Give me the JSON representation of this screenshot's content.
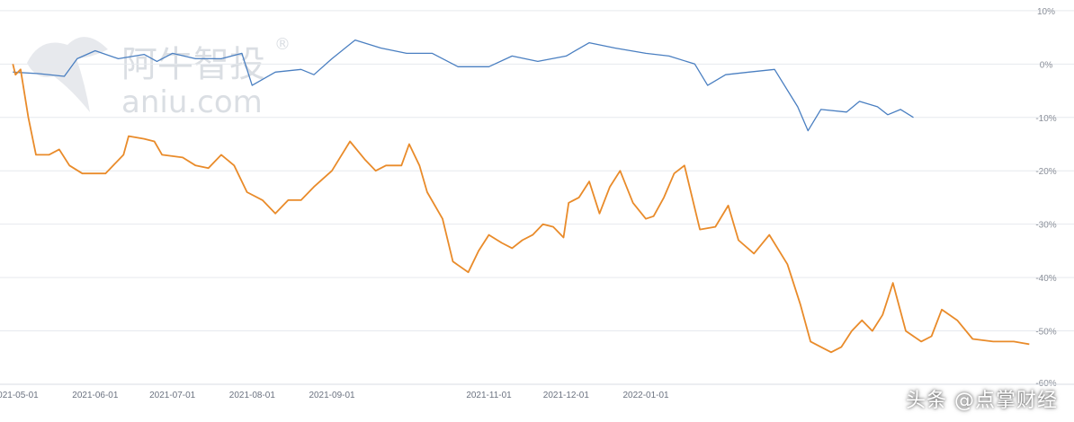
{
  "chart_data": {
    "type": "line",
    "title": "",
    "xlabel": "",
    "ylabel": "",
    "ylim": [
      -60,
      12
    ],
    "y_ticks": [
      10,
      0,
      -10,
      -20,
      -30,
      -40,
      -50,
      -60
    ],
    "y_tick_labels": [
      "10%",
      "0%",
      "-10%",
      "-20%",
      "-30%",
      "-40%",
      "-50%",
      "-60%"
    ],
    "x_ticks": [
      "2021-05-01",
      "2021-06-01",
      "2021-07-01",
      "2021-08-01",
      "2021-09-01",
      "2021-11-01",
      "2021-12-01",
      "2022-01-01"
    ],
    "grid": true,
    "series": [
      {
        "color": "#4a7fc1",
        "points": [
          [
            "2021-04-30",
            -1.5
          ],
          [
            "2021-05-10",
            -1.8
          ],
          [
            "2021-05-20",
            -2.3
          ],
          [
            "2021-05-25",
            1.0
          ],
          [
            "2021-06-01",
            2.5
          ],
          [
            "2021-06-10",
            1.0
          ],
          [
            "2021-06-20",
            1.8
          ],
          [
            "2021-06-25",
            0.5
          ],
          [
            "2021-07-01",
            2.0
          ],
          [
            "2021-07-10",
            1.0
          ],
          [
            "2021-07-20",
            1.0
          ],
          [
            "2021-07-28",
            2.0
          ],
          [
            "2021-08-01",
            -4.0
          ],
          [
            "2021-08-10",
            -1.5
          ],
          [
            "2021-08-20",
            -1.0
          ],
          [
            "2021-08-25",
            -2.0
          ],
          [
            "2021-09-01",
            1.0
          ],
          [
            "2021-09-10",
            4.5
          ],
          [
            "2021-09-20",
            3.0
          ],
          [
            "2021-09-30",
            2.0
          ],
          [
            "2021-10-10",
            2.0
          ],
          [
            "2021-10-20",
            -0.5
          ],
          [
            "2021-11-01",
            -0.5
          ],
          [
            "2021-11-10",
            1.5
          ],
          [
            "2021-11-20",
            0.5
          ],
          [
            "2021-12-01",
            1.5
          ],
          [
            "2021-12-10",
            4.0
          ],
          [
            "2021-12-20",
            3.0
          ],
          [
            "2022-01-01",
            2.0
          ],
          [
            "2022-01-10",
            1.5
          ],
          [
            "2022-01-20",
            0.0
          ],
          [
            "2022-01-25",
            -4.0
          ],
          [
            "2022-02-01",
            -2.0
          ],
          [
            "2022-02-10",
            -1.5
          ],
          [
            "2022-02-20",
            -1.0
          ],
          [
            "2022-03-01",
            -8.0
          ],
          [
            "2022-03-05",
            -12.5
          ],
          [
            "2022-03-10",
            -8.5
          ],
          [
            "2022-03-20",
            -9.0
          ],
          [
            "2022-03-25",
            -7.0
          ],
          [
            "2022-04-01",
            -8.0
          ],
          [
            "2022-04-05",
            -9.5
          ],
          [
            "2022-04-10",
            -8.5
          ],
          [
            "2022-04-15",
            -10.0
          ]
        ]
      },
      {
        "color": "#e98b2a",
        "points": [
          [
            "2021-04-30",
            0.0
          ],
          [
            "2021-05-01",
            -2.0
          ],
          [
            "2021-05-03",
            -1.0
          ],
          [
            "2021-05-06",
            -10.0
          ],
          [
            "2021-05-09",
            -17.0
          ],
          [
            "2021-05-14",
            -17.0
          ],
          [
            "2021-05-18",
            -16.0
          ],
          [
            "2021-05-22",
            -19.0
          ],
          [
            "2021-05-27",
            -20.5
          ],
          [
            "2021-06-05",
            -20.5
          ],
          [
            "2021-06-12",
            -17.0
          ],
          [
            "2021-06-14",
            -13.5
          ],
          [
            "2021-06-20",
            -14.0
          ],
          [
            "2021-06-24",
            -14.5
          ],
          [
            "2021-06-27",
            -17.0
          ],
          [
            "2021-07-05",
            -17.5
          ],
          [
            "2021-07-10",
            -19.0
          ],
          [
            "2021-07-15",
            -19.5
          ],
          [
            "2021-07-20",
            -17.0
          ],
          [
            "2021-07-25",
            -19.0
          ],
          [
            "2021-07-30",
            -24.0
          ],
          [
            "2021-08-05",
            -25.5
          ],
          [
            "2021-08-10",
            -28.0
          ],
          [
            "2021-08-15",
            -25.5
          ],
          [
            "2021-08-20",
            -25.5
          ],
          [
            "2021-08-25",
            -23.0
          ],
          [
            "2021-09-01",
            -20.0
          ],
          [
            "2021-09-08",
            -14.5
          ],
          [
            "2021-09-14",
            -18.0
          ],
          [
            "2021-09-18",
            -20.0
          ],
          [
            "2021-09-22",
            -19.0
          ],
          [
            "2021-09-28",
            -19.0
          ],
          [
            "2021-10-01",
            -15.0
          ],
          [
            "2021-10-05",
            -19.0
          ],
          [
            "2021-10-08",
            -24.0
          ],
          [
            "2021-10-14",
            -29.0
          ],
          [
            "2021-10-18",
            -37.0
          ],
          [
            "2021-10-24",
            -39.0
          ],
          [
            "2021-10-28",
            -35.0
          ],
          [
            "2021-11-01",
            -32.0
          ],
          [
            "2021-11-06",
            -33.5
          ],
          [
            "2021-11-10",
            -34.5
          ],
          [
            "2021-11-14",
            -33.0
          ],
          [
            "2021-11-18",
            -32.0
          ],
          [
            "2021-11-22",
            -30.0
          ],
          [
            "2021-11-26",
            -30.5
          ],
          [
            "2021-11-30",
            -32.5
          ],
          [
            "2021-12-02",
            -26.0
          ],
          [
            "2021-12-06",
            -25.0
          ],
          [
            "2021-12-10",
            -22.0
          ],
          [
            "2021-12-14",
            -28.0
          ],
          [
            "2021-12-18",
            -23.0
          ],
          [
            "2021-12-22",
            -20.0
          ],
          [
            "2021-12-27",
            -26.0
          ],
          [
            "2022-01-01",
            -29.0
          ],
          [
            "2022-01-04",
            -28.5
          ],
          [
            "2022-01-08",
            -25.0
          ],
          [
            "2022-01-12",
            -20.5
          ],
          [
            "2022-01-16",
            -19.0
          ],
          [
            "2022-01-22",
            -31.0
          ],
          [
            "2022-01-28",
            -30.5
          ],
          [
            "2022-02-02",
            -26.5
          ],
          [
            "2022-02-06",
            -33.0
          ],
          [
            "2022-02-12",
            -35.5
          ],
          [
            "2022-02-18",
            -32.0
          ],
          [
            "2022-02-25",
            -37.5
          ],
          [
            "2022-03-02",
            -45.0
          ],
          [
            "2022-03-06",
            -52.0
          ],
          [
            "2022-03-10",
            -53.0
          ],
          [
            "2022-03-14",
            -54.0
          ],
          [
            "2022-03-18",
            -53.0
          ],
          [
            "2022-03-22",
            -50.0
          ],
          [
            "2022-03-26",
            -48.0
          ],
          [
            "2022-03-30",
            -50.0
          ],
          [
            "2022-04-03",
            -47.0
          ],
          [
            "2022-04-07",
            -41.0
          ],
          [
            "2022-04-12",
            -50.0
          ],
          [
            "2022-04-18",
            -52.0
          ],
          [
            "2022-04-22",
            -51.0
          ],
          [
            "2022-04-26",
            -46.0
          ],
          [
            "2022-05-02",
            -48.0
          ],
          [
            "2022-05-08",
            -51.5
          ],
          [
            "2022-05-16",
            -52.0
          ],
          [
            "2022-05-24",
            -52.0
          ],
          [
            "2022-05-30",
            -52.5
          ]
        ]
      }
    ]
  },
  "watermark": {
    "brand_cn": "阿牛智投",
    "brand_en": "aniu.com",
    "mark": "®"
  },
  "credit": "头条 @点掌财经"
}
